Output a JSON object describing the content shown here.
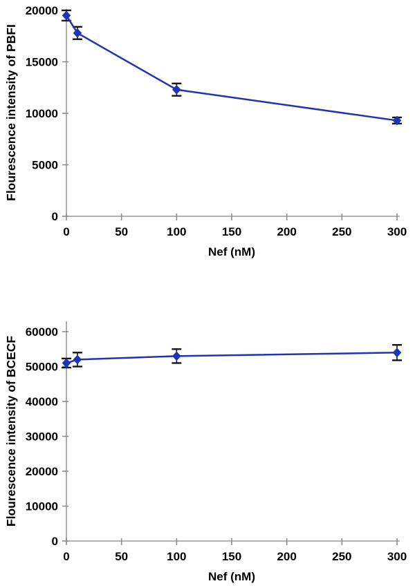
{
  "page": {
    "background": "#ffffff",
    "description": "Two stacked XY line charts of fluorescence intensity versus Nef concentration"
  },
  "colors": {
    "series_line": "#1e34b4",
    "marker_fill": "#1e34b4",
    "error_bar": "#141414",
    "axis_line": "#9a9a9a",
    "tick_mark": "#8c8c8c",
    "text": "#000000"
  },
  "chart_data": [
    {
      "type": "line",
      "title": "",
      "xlabel": "Nef (nM)",
      "ylabel": "Flourescence intensity of PBFI",
      "x": [
        0,
        10,
        100,
        300
      ],
      "series": [
        {
          "name": "PBFI fluorescence",
          "values": [
            19500,
            17800,
            12300,
            9300
          ],
          "error_bars": [
            500,
            600,
            600,
            300
          ]
        }
      ],
      "xlim": [
        0,
        300
      ],
      "ylim": [
        0,
        20000
      ],
      "x_ticks": [
        0,
        50,
        100,
        150,
        200,
        250,
        300
      ],
      "y_ticks": [
        0,
        5000,
        10000,
        15000,
        20000
      ],
      "grid": false,
      "legend": "none",
      "marker": "diamond"
    },
    {
      "type": "line",
      "title": "",
      "xlabel": "Nef (nM)",
      "ylabel": "Flourescence intensity of BCECF",
      "x": [
        0,
        10,
        100,
        300
      ],
      "series": [
        {
          "name": "BCECF fluorescence",
          "values": [
            51000,
            52000,
            53000,
            54000
          ],
          "error_bars": [
            1300,
            2000,
            2000,
            2200
          ]
        }
      ],
      "xlim": [
        0,
        300
      ],
      "ylim": [
        0,
        60000
      ],
      "x_ticks": [
        0,
        50,
        100,
        150,
        200,
        250,
        300
      ],
      "y_ticks": [
        0,
        10000,
        20000,
        30000,
        40000,
        50000,
        60000
      ],
      "grid": false,
      "legend": "none",
      "marker": "diamond"
    }
  ]
}
